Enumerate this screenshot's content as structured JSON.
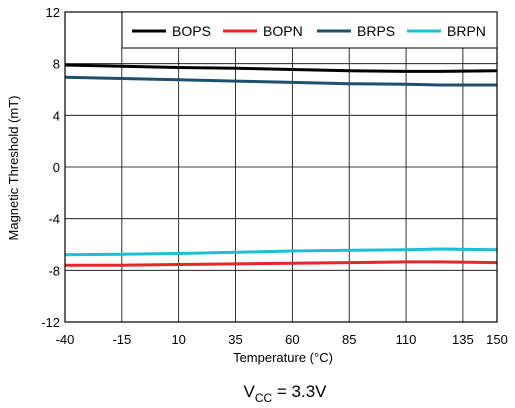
{
  "chart_data": {
    "type": "line",
    "xlabel_main": "Temperature (",
    "xlabel_unit": "°C)",
    "ylabel": "Magnetic Threshold (mT)",
    "xlim": [
      -40,
      150
    ],
    "ylim": [
      -12,
      12
    ],
    "x_ticks": [
      -40,
      -15,
      10,
      35,
      60,
      85,
      110,
      135,
      150
    ],
    "y_ticks": [
      -12,
      -8,
      -4,
      0,
      4,
      8,
      12
    ],
    "grid": true,
    "legend_position": "top-right",
    "x": [
      -40,
      -15,
      10,
      35,
      60,
      85,
      110,
      125,
      150
    ],
    "series": [
      {
        "name": "BOPS",
        "color": "#000000",
        "values": [
          7.9,
          7.8,
          7.7,
          7.65,
          7.55,
          7.45,
          7.4,
          7.4,
          7.45
        ]
      },
      {
        "name": "BOPN",
        "color": "#e8262a",
        "values": [
          -7.6,
          -7.6,
          -7.55,
          -7.5,
          -7.45,
          -7.4,
          -7.35,
          -7.35,
          -7.4
        ]
      },
      {
        "name": "BRPS",
        "color": "#1d4f6e",
        "values": [
          6.95,
          6.85,
          6.75,
          6.65,
          6.55,
          6.45,
          6.4,
          6.35,
          6.35
        ]
      },
      {
        "name": "BRPN",
        "color": "#1bbfd6",
        "values": [
          -6.8,
          -6.75,
          -6.7,
          -6.6,
          -6.5,
          -6.45,
          -6.4,
          -6.35,
          -6.4
        ]
      }
    ],
    "caption_main": "V",
    "caption_sub": "CC",
    "caption_rest": " = 3.3V"
  }
}
